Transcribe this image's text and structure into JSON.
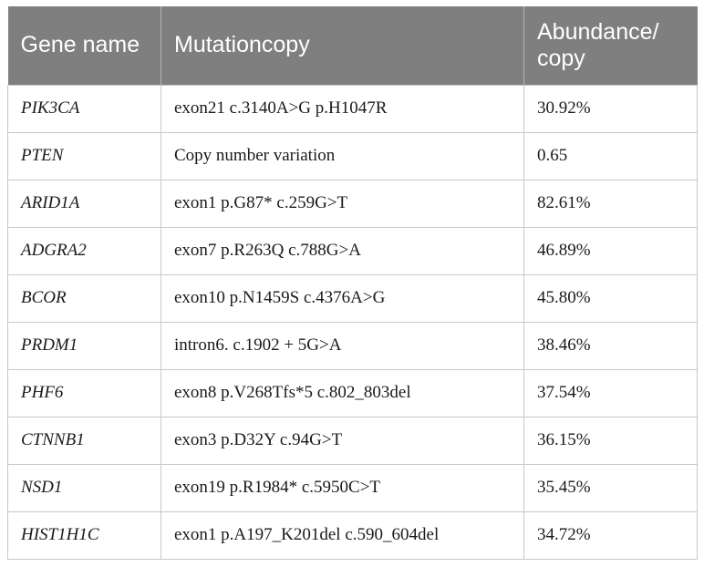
{
  "table": {
    "headers": [
      "Gene name",
      "Mutationcopy",
      "Abundance/ copy"
    ],
    "rows": [
      {
        "gene": "PIK3CA",
        "mutation": "exon21 c.3140A>G p.H1047R",
        "abundance": "30.92%"
      },
      {
        "gene": "PTEN",
        "mutation": "Copy number variation",
        "abundance": "0.65"
      },
      {
        "gene": "ARID1A",
        "mutation": "exon1 p.G87* c.259G>T",
        "abundance": "82.61%"
      },
      {
        "gene": "ADGRA2",
        "mutation": "exon7 p.R263Q c.788G>A",
        "abundance": "46.89%"
      },
      {
        "gene": "BCOR",
        "mutation": "exon10 p.N1459S c.4376A>G",
        "abundance": "45.80%"
      },
      {
        "gene": "PRDM1",
        "mutation": "intron6. c.1902 + 5G>A",
        "abundance": "38.46%"
      },
      {
        "gene": "PHF6",
        "mutation": "exon8 p.V268Tfs*5 c.802_803del",
        "abundance": "37.54%"
      },
      {
        "gene": "CTNNB1",
        "mutation": "exon3 p.D32Y c.94G>T",
        "abundance": "36.15%"
      },
      {
        "gene": "NSD1",
        "mutation": "exon19 p.R1984* c.5950C>T",
        "abundance": "35.45%"
      },
      {
        "gene": "HIST1H1C",
        "mutation": "exon1 p.A197_K201del c.590_604del",
        "abundance": "34.72%"
      }
    ]
  }
}
